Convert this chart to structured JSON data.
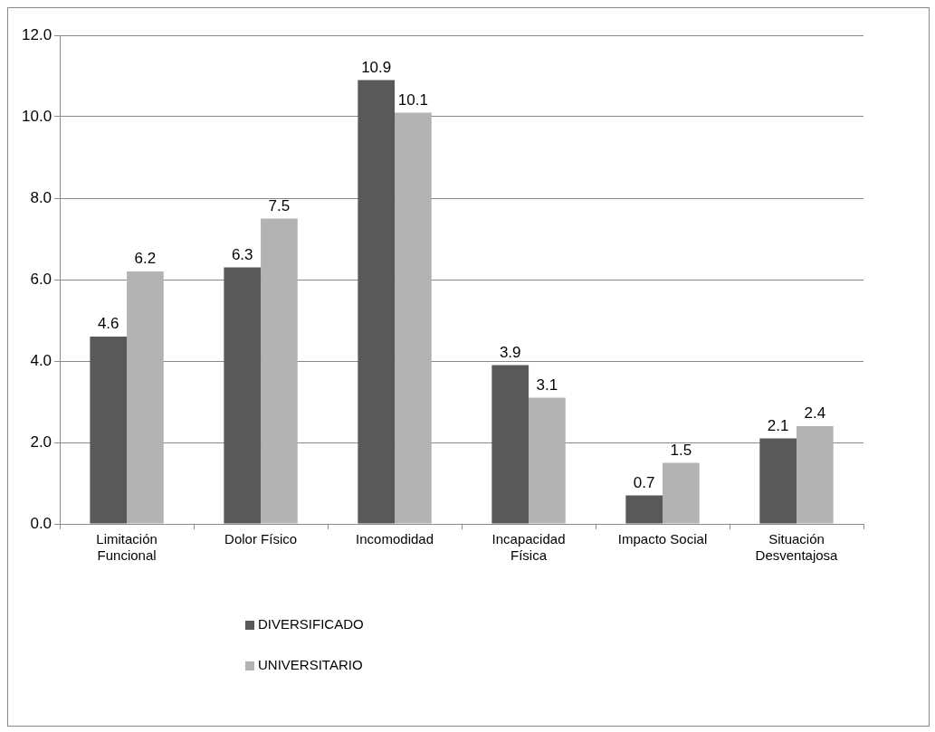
{
  "chart_data": {
    "type": "bar",
    "categories": [
      "Limitación Funcional",
      "Dolor Físico",
      "Incomodidad",
      "Incapacidad Física",
      "Impacto Social",
      "Situación Desventajosa"
    ],
    "series": [
      {
        "name": "DIVERSIFICADO",
        "color": "#595959",
        "values": [
          4.6,
          6.3,
          10.9,
          3.9,
          0.7,
          2.1
        ]
      },
      {
        "name": "UNIVERSITARIO",
        "color": "#b3b3b3",
        "values": [
          6.2,
          7.5,
          10.1,
          3.1,
          1.5,
          2.4
        ]
      }
    ],
    "ylim": [
      0,
      12
    ],
    "yticks": [
      {
        "value": 0,
        "label": "0.0"
      },
      {
        "value": 2,
        "label": "2.0"
      },
      {
        "value": 4,
        "label": "4.0"
      },
      {
        "value": 6,
        "label": "6.0"
      },
      {
        "value": 8,
        "label": "8.0"
      },
      {
        "value": 10,
        "label": "10.0"
      },
      {
        "value": 12,
        "label": "12.0"
      }
    ],
    "grid": "y",
    "legend": "bottom",
    "data_labels": true
  }
}
